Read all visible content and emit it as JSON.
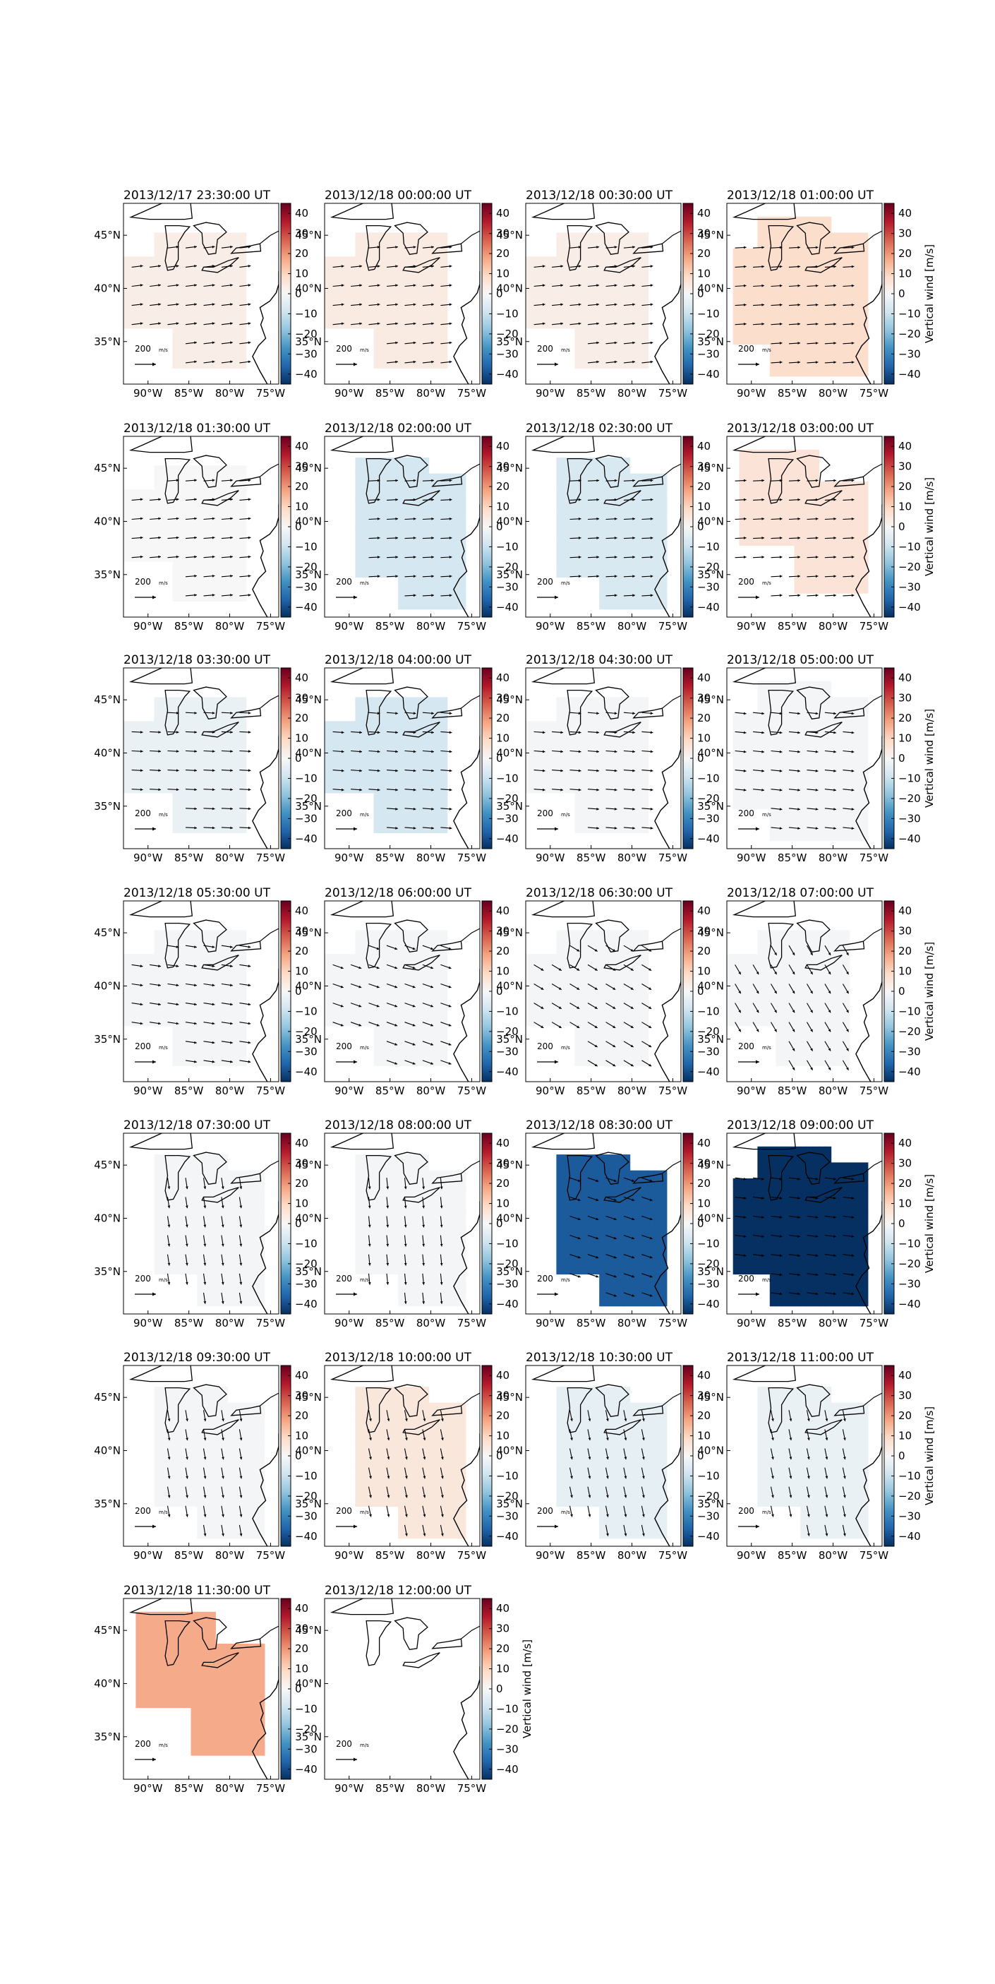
{
  "chart_data": {
    "type": "map",
    "colorbar": {
      "label": "Vertical wind [m/s]",
      "ticks": [
        40,
        30,
        20,
        10,
        0,
        -10,
        -20,
        -30,
        -40
      ],
      "tick_labels": [
        "40",
        "30",
        "20",
        "10",
        "0",
        "−10",
        "−20",
        "−30",
        "−40"
      ],
      "range": [
        -45,
        45
      ],
      "colormap_stops": [
        "#053061",
        "#2166ac",
        "#4393c3",
        "#92c5de",
        "#d1e5f0",
        "#f7f7f7",
        "#fddbc7",
        "#f4a582",
        "#d6604d",
        "#b2182b",
        "#67001f"
      ]
    },
    "map": {
      "lon_range": [
        -93,
        -74
      ],
      "lat_range": [
        31,
        48
      ],
      "x_tick_labels": [
        "90°W",
        "85°W",
        "80°W",
        "75°W"
      ],
      "x_tick_lons": [
        -90,
        -85,
        -80,
        -75
      ],
      "y_tick_labels": [
        "45°N",
        "40°N",
        "35°N"
      ],
      "y_tick_lats": [
        45,
        40,
        35
      ]
    },
    "quiver_key": {
      "label": "200",
      "unit": "m/s"
    },
    "panels": [
      {
        "title": "2013/12/17 23:30:00 UT",
        "vertical_wind": 3,
        "region": "west",
        "vector_u": 1.0,
        "vector_v": 0.12
      },
      {
        "title": "2013/12/18 00:00:00 UT",
        "vertical_wind": 4,
        "region": "west",
        "vector_u": 1.0,
        "vector_v": 0.1
      },
      {
        "title": "2013/12/18 00:30:00 UT",
        "vertical_wind": 3,
        "region": "west",
        "vector_u": 1.0,
        "vector_v": 0.1
      },
      {
        "title": "2013/12/18 01:00:00 UT",
        "vertical_wind": 8,
        "region": "full",
        "vector_u": 1.0,
        "vector_v": 0.06
      },
      {
        "title": "2013/12/18 01:30:00 UT",
        "vertical_wind": 0,
        "region": "west",
        "vector_u": 1.0,
        "vector_v": 0.08
      },
      {
        "title": "2013/12/18 02:00:00 UT",
        "vertical_wind": -8,
        "region": "east",
        "vector_u": 1.0,
        "vector_v": 0.05
      },
      {
        "title": "2013/12/18 02:30:00 UT",
        "vertical_wind": -7,
        "region": "east",
        "vector_u": 1.0,
        "vector_v": 0.05
      },
      {
        "title": "2013/12/18 03:00:00 UT",
        "vertical_wind": 6,
        "region": "lake",
        "vector_u": 1.0,
        "vector_v": 0.05
      },
      {
        "title": "2013/12/18 03:30:00 UT",
        "vertical_wind": -3,
        "region": "west",
        "vector_u": 1.0,
        "vector_v": -0.05
      },
      {
        "title": "2013/12/18 04:00:00 UT",
        "vertical_wind": -8,
        "region": "west",
        "vector_u": 1.0,
        "vector_v": -0.08
      },
      {
        "title": "2013/12/18 04:30:00 UT",
        "vertical_wind": -1,
        "region": "west",
        "vector_u": 1.0,
        "vector_v": -0.08
      },
      {
        "title": "2013/12/18 05:00:00 UT",
        "vertical_wind": -1,
        "region": "full",
        "vector_u": 1.0,
        "vector_v": -0.1
      },
      {
        "title": "2013/12/18 05:30:00 UT",
        "vertical_wind": -1,
        "region": "west",
        "vector_u": 1.0,
        "vector_v": -0.15
      },
      {
        "title": "2013/12/18 06:00:00 UT",
        "vertical_wind": -1,
        "region": "west",
        "vector_u": 1.0,
        "vector_v": -0.35
      },
      {
        "title": "2013/12/18 06:30:00 UT",
        "vertical_wind": -1,
        "region": "west",
        "vector_u": 1.0,
        "vector_v": -0.6
      },
      {
        "title": "2013/12/18 07:00:00 UT",
        "vertical_wind": -1,
        "region": "west",
        "vector_u": 0.5,
        "vector_v": -0.85
      },
      {
        "title": "2013/12/18 07:30:00 UT",
        "vertical_wind": -1,
        "region": "east",
        "vector_u": 0.15,
        "vector_v": -1.0
      },
      {
        "title": "2013/12/18 08:00:00 UT",
        "vertical_wind": -1,
        "region": "east",
        "vector_u": 0.1,
        "vector_v": -1.0
      },
      {
        "title": "2013/12/18 08:30:00 UT",
        "vertical_wind": -38,
        "region": "east",
        "vector_u": 0.6,
        "vector_v": -0.2
      },
      {
        "title": "2013/12/18 09:00:00 UT",
        "vertical_wind": -45,
        "region": "full",
        "vector_u": 0.8,
        "vector_v": -0.1
      },
      {
        "title": "2013/12/18 09:30:00 UT",
        "vertical_wind": -1,
        "region": "east",
        "vector_u": 0.1,
        "vector_v": -0.6
      },
      {
        "title": "2013/12/18 10:00:00 UT",
        "vertical_wind": 5,
        "region": "east",
        "vector_u": 0.1,
        "vector_v": -0.5
      },
      {
        "title": "2013/12/18 10:30:00 UT",
        "vertical_wind": -4,
        "region": "east",
        "vector_u": 0.1,
        "vector_v": -0.5
      },
      {
        "title": "2013/12/18 11:00:00 UT",
        "vertical_wind": -3,
        "region": "east",
        "vector_u": 0.1,
        "vector_v": -0.5
      },
      {
        "title": "2013/12/18 11:30:00 UT",
        "vertical_wind": 17,
        "region": "lake",
        "vector_u": 0,
        "vector_v": 0
      },
      {
        "title": "2013/12/18 12:00:00 UT",
        "vertical_wind": null,
        "region": "none",
        "vector_u": 0,
        "vector_v": 0
      }
    ]
  }
}
